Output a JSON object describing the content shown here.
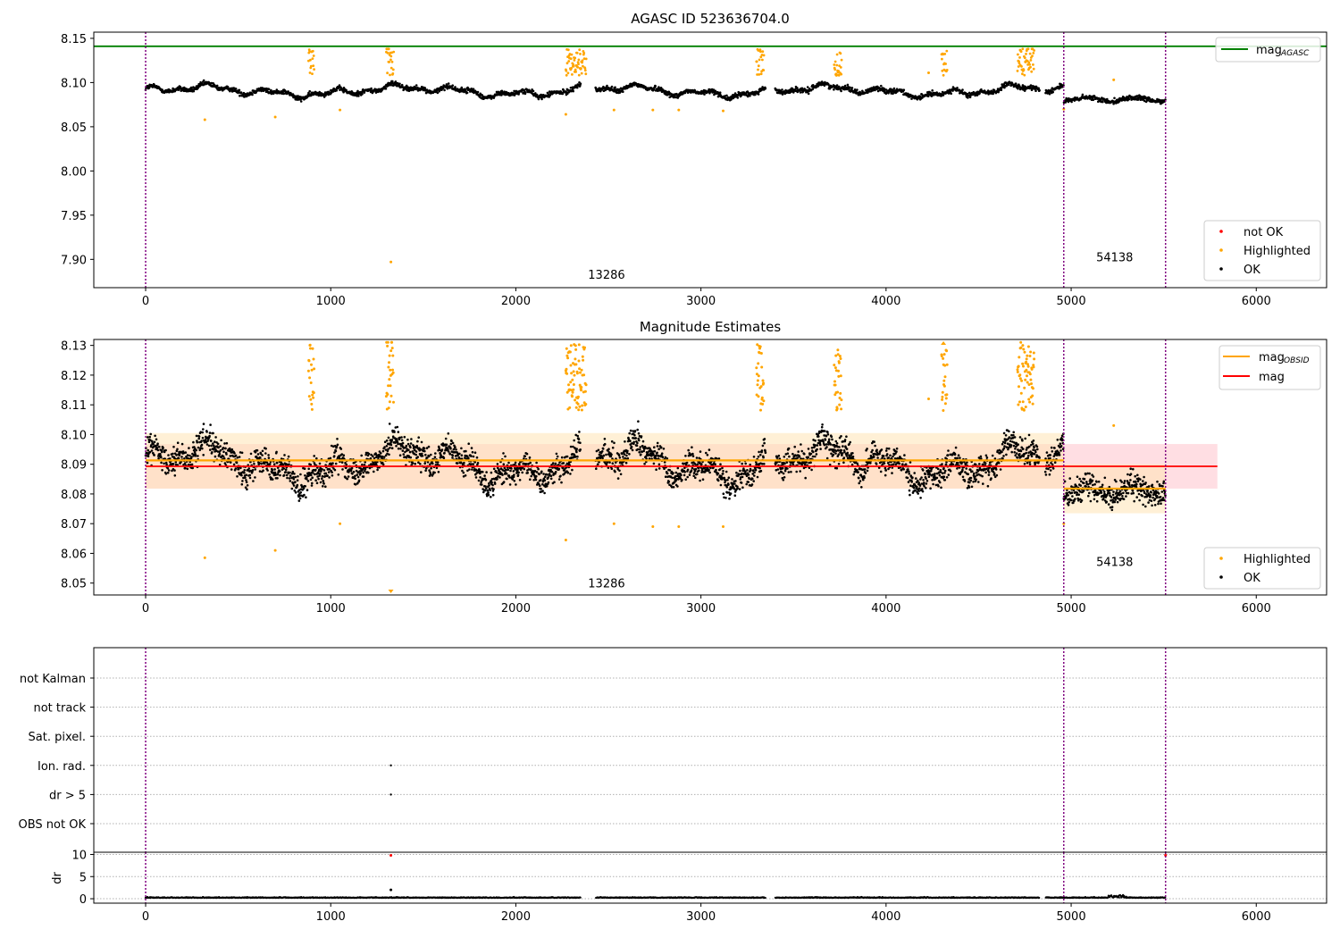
{
  "colors": {
    "ok": "#000000",
    "highlighted": "#ffa500",
    "not_ok": "#ff0000",
    "mag_agasc": "#008000",
    "mag": "#ff0000",
    "mag_obsid": "#ffa500",
    "obs_boundary": "#800080",
    "band_red": "#ffb6c1",
    "band_orange": "#ffe4b5"
  },
  "chart_data": [
    {
      "type": "scatter",
      "title": "AGASC ID 523636704.0",
      "xlim": [
        -280,
        6380
      ],
      "ylim": [
        7.868,
        8.157
      ],
      "x_ticks": [
        0,
        1000,
        2000,
        3000,
        4000,
        5000,
        6000
      ],
      "y_ticks": [
        7.9,
        7.95,
        8.0,
        8.05,
        8.1,
        8.15
      ],
      "y_tick_labels": [
        "7.90",
        "7.95",
        "8.00",
        "8.05",
        "8.10",
        "8.15"
      ],
      "mag_agasc": 8.141,
      "observation_boundaries": [
        0,
        4960,
        5510
      ],
      "annotations": [
        {
          "text": "13286",
          "x": 2490,
          "y": 7.878
        },
        {
          "text": "54138",
          "x": 5235,
          "y": 7.898
        }
      ],
      "legend_lines": [
        {
          "label": "mag",
          "sub": "AGASC",
          "color": "#008000"
        }
      ],
      "legend_points": [
        {
          "label": "not OK",
          "color": "#ff0000"
        },
        {
          "label": "Highlighted",
          "color": "#ffa500"
        },
        {
          "label": "OK",
          "color": "#000000"
        }
      ],
      "legend_lines_position": "upper right",
      "legend_points_position": "lower right"
    },
    {
      "type": "scatter",
      "title": "Magnitude Estimates",
      "xlim": [
        -280,
        6380
      ],
      "ylim": [
        8.046,
        8.132
      ],
      "x_ticks": [
        0,
        1000,
        2000,
        3000,
        4000,
        5000,
        6000
      ],
      "y_ticks": [
        8.05,
        8.06,
        8.07,
        8.08,
        8.09,
        8.1,
        8.11,
        8.12,
        8.13
      ],
      "y_tick_labels": [
        "8.05",
        "8.06",
        "8.07",
        "8.08",
        "8.09",
        "8.10",
        "8.11",
        "8.12",
        "8.13"
      ],
      "mag": 8.0893,
      "mag_band": [
        8.0818,
        8.0968
      ],
      "mag_obsid": [
        {
          "x0": 0,
          "x1": 4960,
          "value": 8.0913,
          "band": [
            8.0818,
            8.1005
          ]
        },
        {
          "x0": 4960,
          "x1": 5510,
          "value": 8.0818,
          "band": [
            8.0735,
            8.09
          ]
        }
      ],
      "observation_boundaries": [
        0,
        4960,
        5510
      ],
      "annotations": [
        {
          "text": "13286",
          "x": 2490,
          "y": 8.0486
        },
        {
          "text": "54138",
          "x": 5235,
          "y": 8.0558
        }
      ],
      "legend_lines": [
        {
          "label": "mag",
          "sub": "OBSID",
          "color": "#ffa500"
        },
        {
          "label": "mag",
          "sub": "",
          "color": "#ff0000"
        }
      ],
      "legend_points": [
        {
          "label": "Highlighted",
          "color": "#ffa500"
        },
        {
          "label": "OK",
          "color": "#000000"
        }
      ],
      "legend_lines_position": "upper right",
      "legend_points_position": "lower right"
    },
    {
      "type": "scatter",
      "title": "",
      "xlim": [
        -280,
        6380
      ],
      "categories": [
        "not Kalman",
        "not track",
        "Sat. pixel.",
        "Ion. rad.",
        "dr > 5",
        "OBS not OK"
      ],
      "flag_points": [
        {
          "category": "Ion. rad.",
          "x": 1325
        },
        {
          "category": "dr > 5",
          "x": 1325
        }
      ],
      "observation_boundaries": [
        0,
        4960,
        5510
      ]
    },
    {
      "type": "scatter",
      "title": "",
      "ylabel": "dr",
      "xlim": [
        -280,
        6380
      ],
      "ylim": [
        -1,
        10.5
      ],
      "x_ticks": [
        0,
        1000,
        2000,
        3000,
        4000,
        5000,
        6000
      ],
      "y_ticks": [
        0,
        5,
        10
      ],
      "y_tick_labels": [
        "0",
        "5",
        "10"
      ],
      "dr_typical": 0.2,
      "dr_outliers": [
        {
          "x": 1325,
          "y": 9.8,
          "color": "#ff0000"
        },
        {
          "x": 1325,
          "y": 2.0,
          "color": "#000000"
        },
        {
          "x": 5510,
          "y": 9.8,
          "color": "#ff0000"
        }
      ],
      "observation_boundaries": [
        0,
        4960,
        5510
      ]
    }
  ]
}
